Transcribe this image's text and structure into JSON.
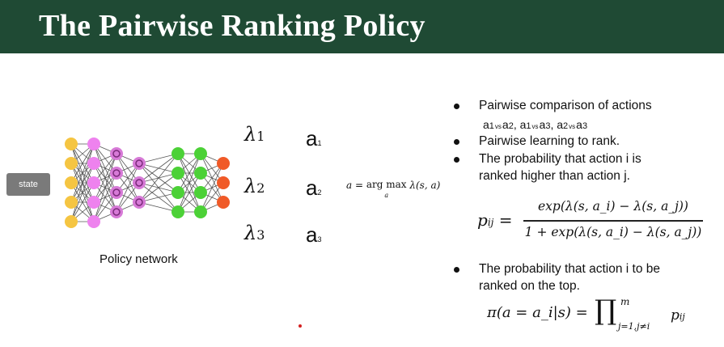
{
  "title": "The Pairwise Ranking Policy",
  "diagram": {
    "state_label": "state",
    "network_label": "Policy network",
    "lambdas": [
      {
        "sym": "λ",
        "sub": "1"
      },
      {
        "sym": "λ",
        "sub": "2"
      },
      {
        "sym": "λ",
        "sub": "3"
      }
    ],
    "actions": [
      {
        "sym": "a",
        "sub": "1"
      },
      {
        "sym": "a",
        "sub": "2"
      },
      {
        "sym": "a",
        "sub": "3"
      }
    ],
    "argmax": {
      "lhs": "a =",
      "op": "arg max",
      "op_sub": "a",
      "rhs": "λ(s, a)"
    },
    "colors": {
      "input": "#f5c542",
      "hidden1": "#ee82ee",
      "hidden2": "#d77ad7",
      "hidden3": "#4cd137",
      "output": "#f05a28"
    }
  },
  "bullets": [
    {
      "text": "Pairwise comparison of actions"
    },
    {
      "text": "Pairwise learning to rank."
    },
    {
      "text": "The probability that action i is"
    },
    {
      "text": "The probability that action i to be"
    }
  ],
  "bullet_continuations": [
    "ranked higher than action j.",
    "ranked on the top."
  ],
  "pairs": [
    {
      "l": "a",
      "ls": "1",
      "vs": "vs",
      "r": "a",
      "rs": "2"
    },
    {
      "l": "a",
      "ls": "1",
      "vs": "vs",
      "r": "a",
      "rs": "3"
    },
    {
      "l": "a",
      "ls": "2",
      "vs": "vs",
      "r": "a",
      "rs": "3"
    }
  ],
  "formula_p": {
    "lhs": "p",
    "lhs_sub": "ij",
    "eq": "=",
    "numerator": "exp(λ(s, a_i) − λ(s, a_j))",
    "denominator": "1 + exp(λ(s, a_i) − λ(s, a_j))"
  },
  "formula_pi": {
    "lhs": "π(a = a_i|s) =",
    "prod": "∏",
    "upper": "m",
    "lower": "j=1,j≠i",
    "term": "p",
    "term_sub": "ij"
  }
}
